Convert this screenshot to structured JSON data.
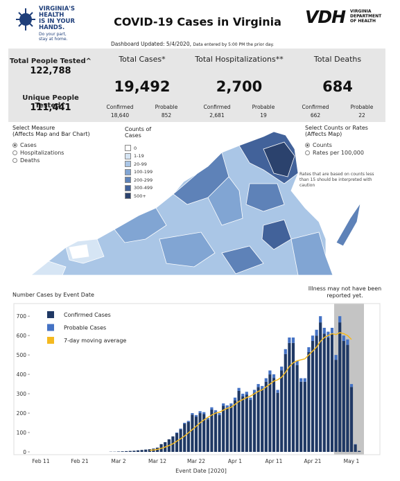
{
  "header": {
    "logo_lines": [
      "VIRGINIA'S",
      "HEALTH",
      "IS IN YOUR",
      "HANDS."
    ],
    "logo_tagline": [
      "Do your part,",
      "stay at home."
    ],
    "title": "COVID-19 Cases in Virginia",
    "agency_logo": "VDH",
    "agency_name": [
      "VIRGINIA",
      "DEPARTMENT",
      "OF HEALTH"
    ],
    "updated": "Dashboard Updated: 5/4/2020,",
    "updated_note": "Data entered by 5:00 PM the prior day."
  },
  "stats": {
    "total_tested": {
      "label": "Total People Tested^",
      "value": "122,788"
    },
    "unique_tested": {
      "label": "Unique People Tested^",
      "value": "111,441"
    },
    "cards": [
      {
        "label": "Total Cases*",
        "value": "19,492",
        "confirmed_label": "Confirmed",
        "confirmed": "18,640",
        "probable_label": "Probable",
        "probable": "852"
      },
      {
        "label": "Total Hospitalizations**",
        "value": "2,700",
        "confirmed_label": "Confirmed",
        "confirmed": "2,681",
        "probable_label": "Probable",
        "probable": "19"
      },
      {
        "label": "Total Deaths",
        "value": "684",
        "confirmed_label": "Confirmed",
        "confirmed": "662",
        "probable_label": "Probable",
        "probable": "22"
      }
    ]
  },
  "map_panel": {
    "measure_title": "Select Measure",
    "measure_subtitle": "(Affects Map and Bar Chart)",
    "measure_options": [
      "Cases",
      "Hospitalizations",
      "Deaths"
    ],
    "legend_title": "Counts of Cases",
    "legend": [
      {
        "label": "0",
        "color": "#ffffff"
      },
      {
        "label": "1-19",
        "color": "#d6e5f4"
      },
      {
        "label": "20-99",
        "color": "#aac6e6"
      },
      {
        "label": "100-199",
        "color": "#81a5d3"
      },
      {
        "label": "200-299",
        "color": "#5e82b8"
      },
      {
        "label": "300-499",
        "color": "#42629a"
      },
      {
        "label": "500+",
        "color": "#2b426d"
      }
    ],
    "rate_title": "Select Counts or Rates",
    "rate_subtitle": "(Affects Map)",
    "rate_options": [
      "Counts",
      "Rates per 100,000"
    ],
    "note": "Rates that are based on counts less than 15 should be interpreted with caution"
  },
  "chart_data": {
    "type": "bar",
    "stacked": true,
    "title": "Number Cases by Event Date",
    "x_label": "Event Date [2020]",
    "annotation": "Illness may not have been reported yet.",
    "grid": false,
    "categories": [
      "Feb 11",
      null,
      null,
      null,
      null,
      null,
      null,
      null,
      null,
      null,
      "Feb 21",
      null,
      null,
      null,
      null,
      null,
      null,
      null,
      null,
      null,
      "Mar 2",
      null,
      null,
      null,
      null,
      null,
      null,
      null,
      null,
      null,
      "Mar 12",
      null,
      null,
      null,
      null,
      null,
      null,
      null,
      null,
      null,
      "Mar 22",
      null,
      null,
      null,
      null,
      null,
      null,
      null,
      null,
      null,
      "Apr 1",
      null,
      null,
      null,
      null,
      null,
      null,
      null,
      null,
      null,
      "Apr 11",
      null,
      null,
      null,
      null,
      null,
      null,
      null,
      null,
      null,
      "Apr 21",
      null,
      null,
      null,
      null,
      null,
      null,
      null,
      null,
      null,
      "May 1",
      null,
      null
    ],
    "series": [
      {
        "name": "Confirmed Cases",
        "color": "#1f3864",
        "values": [
          null,
          null,
          null,
          null,
          null,
          null,
          null,
          null,
          null,
          null,
          null,
          null,
          null,
          null,
          null,
          null,
          null,
          null,
          1,
          1,
          2,
          3,
          4,
          5,
          6,
          8,
          10,
          12,
          14,
          17,
          22,
          40,
          50,
          65,
          80,
          97,
          116,
          145,
          154,
          192,
          182,
          200,
          195,
          167,
          218,
          205,
          190,
          238,
          228,
          238,
          266,
          315,
          286,
          295,
          268,
          305,
          334,
          325,
          362,
          400,
          382,
          305,
          420,
          505,
          562,
          562,
          448,
          362,
          362,
          515,
          572,
          600,
          668,
          610,
          590,
          610,
          475,
          668,
          572,
          552,
          335,
          38,
          5
        ]
      },
      {
        "name": "Probable Cases",
        "color": "#4472c4",
        "values": [
          null,
          null,
          null,
          null,
          null,
          null,
          null,
          null,
          null,
          null,
          null,
          null,
          null,
          null,
          null,
          null,
          null,
          null,
          0,
          0,
          0,
          0,
          0,
          0,
          0,
          0,
          0,
          0,
          0,
          0,
          0,
          0,
          0,
          0,
          0,
          3,
          4,
          5,
          6,
          8,
          8,
          10,
          10,
          8,
          12,
          10,
          10,
          12,
          12,
          12,
          14,
          15,
          14,
          15,
          12,
          15,
          16,
          15,
          18,
          20,
          18,
          15,
          20,
          25,
          28,
          28,
          22,
          18,
          18,
          25,
          28,
          30,
          32,
          30,
          30,
          30,
          25,
          32,
          28,
          28,
          15,
          2,
          0
        ]
      },
      {
        "name": "7-day moving average",
        "type": "line",
        "color": "#f4b920",
        "values": [
          null,
          null,
          null,
          null,
          null,
          null,
          null,
          null,
          null,
          null,
          null,
          null,
          null,
          null,
          null,
          null,
          null,
          null,
          null,
          null,
          null,
          null,
          null,
          null,
          null,
          null,
          null,
          null,
          8,
          10,
          13,
          18,
          25,
          33,
          42,
          55,
          68,
          82,
          98,
          115,
          132,
          150,
          165,
          178,
          190,
          200,
          205,
          215,
          225,
          230,
          245,
          260,
          270,
          280,
          288,
          300,
          312,
          320,
          335,
          350,
          365,
          372,
          385,
          410,
          440,
          460,
          470,
          475,
          480,
          500,
          520,
          540,
          570,
          590,
          600,
          610,
          605,
          615,
          610,
          600,
          580,
          null,
          null
        ]
      }
    ],
    "ylim": [
      0,
      740
    ],
    "yticks": [
      0,
      100,
      200,
      300,
      400,
      500,
      600,
      700
    ]
  }
}
